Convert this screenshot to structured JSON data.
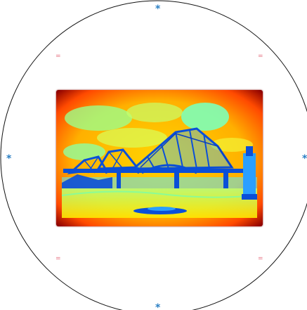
{
  "markers": {
    "top": "*",
    "bottom": "*",
    "left": "*",
    "right": "*",
    "top_left": "=",
    "top_right": "=",
    "bottom_left": "=",
    "bottom_right": "="
  },
  "image": {
    "subject": "bridge-thermal-image",
    "colors": {
      "hot_edge": "#8b0000",
      "warm": "#ff6a00",
      "mid": "#ffd400",
      "cool": "#6fffb0",
      "cold": "#0a4fd8"
    }
  },
  "colors": {
    "circle_stroke": "#111111",
    "asterisk": "#2a7fc4",
    "equals": "#e46a7a"
  }
}
